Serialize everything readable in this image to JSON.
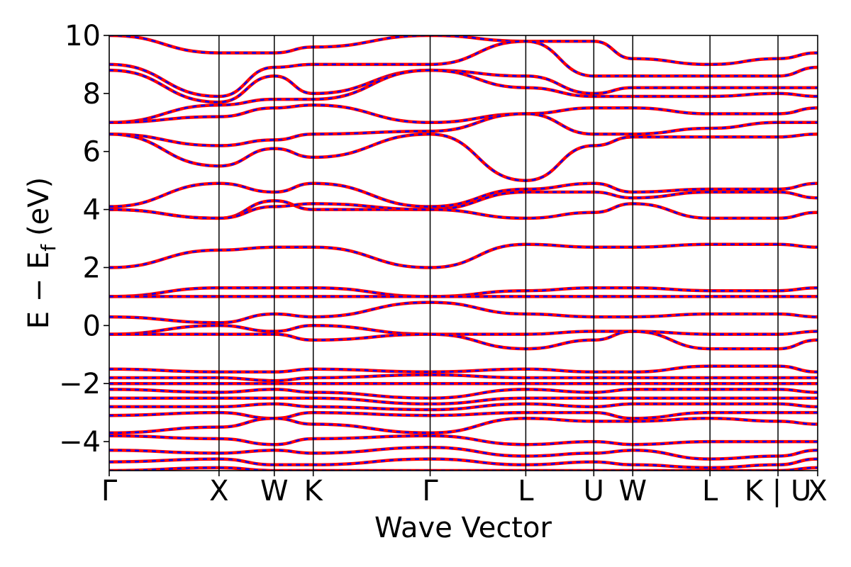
{
  "chart_data": {
    "type": "line",
    "title": "",
    "xlabel": "Wave Vector",
    "ylabel_main": "E − E",
    "ylabel_sub": "f",
    "ylabel_unit": "(eV)",
    "ylim": [
      -5,
      10
    ],
    "y_ticks": [
      {
        "value": -4,
        "label": "−4"
      },
      {
        "value": -2,
        "label": "−2"
      },
      {
        "value": 0,
        "label": "0"
      },
      {
        "value": 2,
        "label": "2"
      },
      {
        "value": 4,
        "label": "4"
      },
      {
        "value": 6,
        "label": "6"
      },
      {
        "value": 8,
        "label": "8"
      },
      {
        "value": 10,
        "label": "10"
      }
    ],
    "x_range": [
      0,
      1
    ],
    "k_points": [
      {
        "label": "Γ",
        "x": 0.0
      },
      {
        "label": "X",
        "x": 0.155
      },
      {
        "label": "W",
        "x": 0.233
      },
      {
        "label": "K",
        "x": 0.288
      },
      {
        "label": "Γ",
        "x": 0.453
      },
      {
        "label": "L",
        "x": 0.588
      },
      {
        "label": "U",
        "x": 0.684
      },
      {
        "label": "W",
        "x": 0.739
      },
      {
        "label": "L",
        "x": 0.848
      },
      {
        "label": "K | U",
        "x": 0.944
      },
      {
        "label": "X",
        "x": 1.0
      }
    ],
    "grid": false,
    "legend": "none",
    "series": [
      {
        "color": "#ff0000",
        "style": "solid"
      },
      {
        "color": "#0000ff",
        "style": "dashed"
      }
    ],
    "bands": [
      [
        10.0,
        9.4,
        9.4,
        9.6,
        10.0,
        9.8,
        9.8,
        9.2,
        9.0,
        9.2,
        9.4,
        9.4
      ],
      [
        9.0,
        7.9,
        8.9,
        9.0,
        9.0,
        9.8,
        8.6,
        8.6,
        8.6,
        8.6,
        8.9,
        7.7
      ],
      [
        8.8,
        7.7,
        8.6,
        8.0,
        8.8,
        8.6,
        8.0,
        8.2,
        8.2,
        8.2,
        8.2,
        7.8
      ],
      [
        7.0,
        7.6,
        7.8,
        7.8,
        8.8,
        8.2,
        7.9,
        7.9,
        7.9,
        8.0,
        7.9,
        7.6
      ],
      [
        7.0,
        7.2,
        7.5,
        7.6,
        7.0,
        7.3,
        7.5,
        7.5,
        7.3,
        7.3,
        7.5,
        7.6
      ],
      [
        6.6,
        6.2,
        6.4,
        6.6,
        6.7,
        7.3,
        6.6,
        6.6,
        6.8,
        7.0,
        7.0,
        7.2
      ],
      [
        6.6,
        5.5,
        6.1,
        5.8,
        6.6,
        5.0,
        6.2,
        6.5,
        6.5,
        6.5,
        6.6,
        6.2
      ],
      [
        4.1,
        4.9,
        4.6,
        4.9,
        4.1,
        4.7,
        4.9,
        4.6,
        4.7,
        4.7,
        4.9,
        5.0
      ],
      [
        4.0,
        3.7,
        4.3,
        4.0,
        4.0,
        4.6,
        4.6,
        4.4,
        4.6,
        4.6,
        4.4,
        4.9
      ],
      [
        4.0,
        3.7,
        4.1,
        4.2,
        4.0,
        3.7,
        3.9,
        4.2,
        3.7,
        3.7,
        3.9,
        3.7
      ],
      [
        2.0,
        2.6,
        2.7,
        2.7,
        2.0,
        2.8,
        2.7,
        2.7,
        2.8,
        2.8,
        2.7,
        2.6
      ],
      [
        1.0,
        1.3,
        1.3,
        1.3,
        1.0,
        1.2,
        1.3,
        1.3,
        1.2,
        1.2,
        1.3,
        1.3
      ],
      [
        1.0,
        1.0,
        1.0,
        1.0,
        1.0,
        1.0,
        1.0,
        1.0,
        1.0,
        1.0,
        1.0,
        1.0
      ],
      [
        0.3,
        0.1,
        0.4,
        0.3,
        0.8,
        0.4,
        0.3,
        0.3,
        0.4,
        0.4,
        0.3,
        0.1
      ],
      [
        -0.3,
        0.0,
        -0.2,
        0.0,
        -0.3,
        -0.3,
        -0.2,
        -0.2,
        -0.3,
        -0.3,
        -0.2,
        0.0
      ],
      [
        -0.3,
        -0.3,
        -0.3,
        -0.5,
        -0.3,
        -0.8,
        -0.5,
        -0.2,
        -0.8,
        -0.8,
        -0.5,
        -0.3
      ],
      [
        -1.5,
        -1.6,
        -1.6,
        -1.5,
        -1.6,
        -1.5,
        -1.6,
        -1.6,
        -1.4,
        -1.4,
        -1.6,
        -1.6
      ],
      [
        -1.8,
        -1.8,
        -1.9,
        -1.8,
        -1.7,
        -1.8,
        -1.8,
        -1.8,
        -1.8,
        -1.8,
        -1.8,
        -1.8
      ],
      [
        -2.0,
        -2.0,
        -2.0,
        -2.0,
        -2.0,
        -2.0,
        -2.0,
        -2.0,
        -2.0,
        -2.0,
        -2.0,
        -2.0
      ],
      [
        -2.2,
        -2.3,
        -2.2,
        -2.3,
        -2.5,
        -2.2,
        -2.3,
        -2.2,
        -2.2,
        -2.2,
        -2.3,
        -2.2
      ],
      [
        -2.5,
        -2.5,
        -2.5,
        -2.5,
        -2.7,
        -2.5,
        -2.5,
        -2.5,
        -2.5,
        -2.5,
        -2.5,
        -2.5
      ],
      [
        -2.8,
        -2.8,
        -2.7,
        -2.8,
        -2.9,
        -2.7,
        -2.8,
        -2.7,
        -2.7,
        -2.7,
        -2.8,
        -2.8
      ],
      [
        -3.1,
        -3.0,
        -3.2,
        -3.0,
        -3.1,
        -3.0,
        -3.0,
        -3.2,
        -3.0,
        -3.0,
        -3.0,
        -3.0
      ],
      [
        -3.7,
        -3.5,
        -3.2,
        -3.4,
        -3.7,
        -3.2,
        -3.3,
        -3.3,
        -3.2,
        -3.3,
        -3.4,
        -3.5
      ],
      [
        -3.8,
        -3.9,
        -4.1,
        -3.9,
        -3.8,
        -4.1,
        -4.0,
        -4.1,
        -4.0,
        -4.0,
        -4.0,
        -4.0
      ],
      [
        -4.3,
        -4.4,
        -4.3,
        -4.4,
        -4.2,
        -4.5,
        -4.4,
        -4.3,
        -4.6,
        -4.5,
        -4.3,
        -4.2
      ],
      [
        -4.7,
        -4.6,
        -4.8,
        -4.8,
        -4.6,
        -4.8,
        -4.7,
        -4.8,
        -4.9,
        -4.8,
        -4.6,
        -4.8
      ],
      [
        -5.0,
        -4.9,
        -5.0,
        -5.0,
        -5.0,
        -5.0,
        -5.0,
        -5.0,
        -5.0,
        -5.0,
        -4.9,
        -4.9
      ]
    ]
  }
}
